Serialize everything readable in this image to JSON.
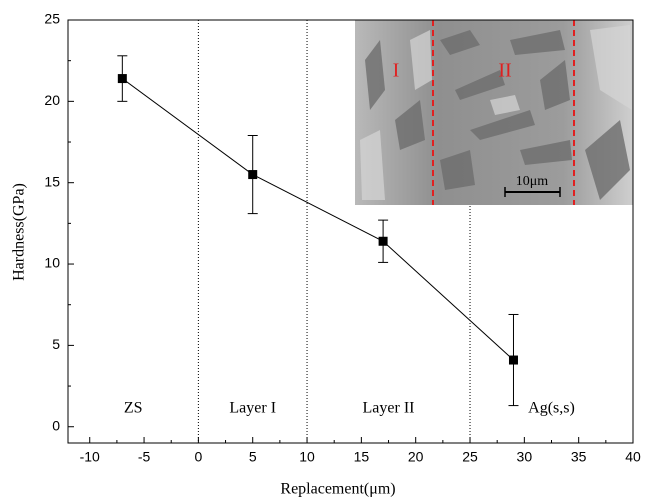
{
  "chart_data": {
    "type": "line",
    "x": [
      -7,
      5,
      17,
      29
    ],
    "values": [
      21.4,
      15.5,
      11.4,
      4.1
    ],
    "errors": [
      1.4,
      2.4,
      1.3,
      2.8
    ],
    "color": "#000000",
    "xlim": [
      -12,
      40
    ],
    "ylim": [
      -1,
      25
    ],
    "xticks": [
      -10,
      -5,
      0,
      5,
      10,
      15,
      20,
      25,
      30,
      35,
      40
    ],
    "yticks": [
      0,
      5,
      10,
      15,
      20,
      25
    ],
    "xlabel": "Replacement(μm)",
    "ylabel": "Hardness(GPa)",
    "dividers": [
      0,
      10,
      25
    ],
    "regions": [
      "ZS",
      "Layer I",
      "Layer II",
      "Ag(s,s)"
    ],
    "inset": {
      "labels": [
        "I",
        "II"
      ],
      "scale_bar": "10μm"
    }
  }
}
